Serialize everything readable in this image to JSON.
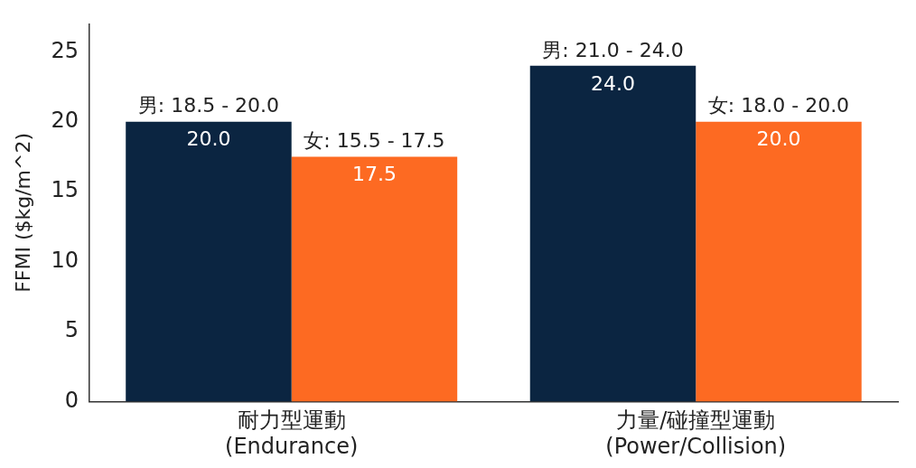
{
  "chart_data": {
    "type": "bar",
    "ylabel": "FFMI ($kg/m^2)",
    "categories": [
      "耐力型運動\n(Endurance)",
      "力量/碰撞型運動\n(Power/Collision)"
    ],
    "series": [
      {
        "color": "#0b2541",
        "values": [
          20.0,
          24.0
        ],
        "value_labels": [
          "20.0",
          "24.0"
        ]
      },
      {
        "color": "#fd6a22",
        "values": [
          17.5,
          20.0
        ],
        "value_labels": [
          "17.5",
          "20.0"
        ]
      }
    ],
    "ylim": [
      0,
      27
    ],
    "yticks": [
      0,
      5,
      10,
      15,
      20,
      25
    ],
    "grid": false,
    "legend": false,
    "annotations": [
      {
        "text": "男: 18.5 - 20.0",
        "x": "耐力型運動\n(Endurance)",
        "y": 20.0
      },
      {
        "text": "女: 15.5 - 17.5",
        "x": "耐力型運動\n(Endurance)",
        "y": 17.5
      },
      {
        "text": "男: 21.0 - 24.0",
        "x": "力量/碰撞型運動\n(Power/Collision)",
        "y": 24.0
      },
      {
        "text": "女: 18.0 - 20.0",
        "x": "力量/碰撞型運動\n(Power/Collision)",
        "y": 20.0
      }
    ]
  }
}
